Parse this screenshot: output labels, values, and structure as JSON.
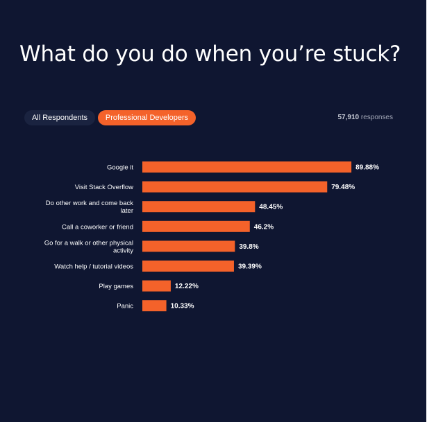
{
  "title": "What do you do when you’re stuck?",
  "tabs": [
    {
      "label": "All Respondents",
      "active": false
    },
    {
      "label": "Professional Developers",
      "active": true
    }
  ],
  "responses": {
    "count": "57,910",
    "label": "responses"
  },
  "colors": {
    "background": "#0f1631",
    "bar": "#f4622a",
    "inactive_tab": "#1a2340",
    "text": "#ffffff"
  },
  "chart_data": {
    "type": "bar",
    "orientation": "horizontal",
    "unit": "%",
    "xlim": [
      0,
      100
    ],
    "grid": false,
    "categories": [
      "Google it",
      "Visit Stack Overflow",
      "Do other work and come back later",
      "Call a coworker or friend",
      "Go for a walk or other physical activity",
      "Watch help / tutorial videos",
      "Play games",
      "Panic"
    ],
    "values": [
      89.88,
      79.48,
      48.45,
      46.2,
      39.8,
      39.39,
      12.22,
      10.33
    ],
    "value_labels": [
      "89.88%",
      "79.48%",
      "48.45%",
      "46.2%",
      "39.8%",
      "39.39%",
      "12.22%",
      "10.33%"
    ],
    "category_lines": [
      [
        "Google it"
      ],
      [
        "Visit Stack Overflow"
      ],
      [
        "Do other work and come back",
        "later"
      ],
      [
        "Call a coworker or friend"
      ],
      [
        "Go for a walk or other physical",
        "activity"
      ],
      [
        "Watch help / tutorial videos"
      ],
      [
        "Play games"
      ],
      [
        "Panic"
      ]
    ]
  }
}
